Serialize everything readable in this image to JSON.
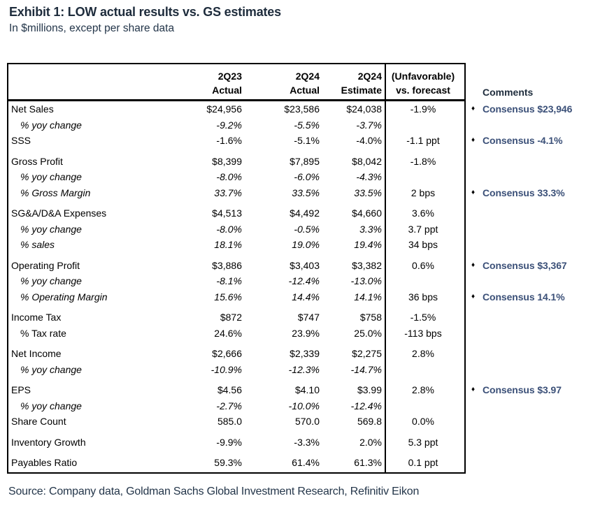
{
  "chart_data": {
    "type": "table",
    "title": "Exhibit 1: LOW actual results vs. GS estimates",
    "subtitle": "In $millions, except per share data",
    "bullet_glyph": "♦",
    "columns": [
      {
        "line1": "",
        "line2": ""
      },
      {
        "line1": "2Q23",
        "line2": "Actual"
      },
      {
        "line1": "2Q24",
        "line2": "Actual"
      },
      {
        "line1": "2Q24",
        "line2": "Estimate"
      },
      {
        "line1": "(Unfavorable)",
        "line2": "vs. forecast"
      },
      {
        "line1": "",
        "line2": "Comments"
      }
    ],
    "rows": [
      {
        "label": "Net Sales",
        "style": "plain",
        "group_start": false,
        "q23": "$24,956",
        "q24": "$23,586",
        "estimate": "$24,038",
        "vs": "-1.9%",
        "comment": "Consensus $23,946"
      },
      {
        "label": "% yoy change",
        "style": "indent-italic",
        "group_start": false,
        "q23": "-9.2%",
        "q24": "-5.5%",
        "estimate": "-3.7%",
        "vs": "",
        "comment": ""
      },
      {
        "label": "SSS",
        "style": "plain",
        "group_start": false,
        "q23": "-1.6%",
        "q24": "-5.1%",
        "estimate": "-4.0%",
        "vs": "-1.1 ppt",
        "comment": "Consensus -4.1%"
      },
      {
        "label": "Gross Profit",
        "style": "plain",
        "group_start": true,
        "q23": "$8,399",
        "q24": "$7,895",
        "estimate": "$8,042",
        "vs": "-1.8%",
        "comment": ""
      },
      {
        "label": "% yoy change",
        "style": "indent-italic",
        "group_start": false,
        "q23": "-8.0%",
        "q24": "-6.0%",
        "estimate": "-4.3%",
        "vs": "",
        "comment": ""
      },
      {
        "label": "% Gross Margin",
        "style": "indent-italic",
        "group_start": false,
        "q23": "33.7%",
        "q24": "33.5%",
        "estimate": "33.5%",
        "vs": "2 bps",
        "comment": "Consensus 33.3%"
      },
      {
        "label": "SG&A/D&A Expenses",
        "style": "plain",
        "group_start": true,
        "q23": "$4,513",
        "q24": "$4,492",
        "estimate": "$4,660",
        "vs": "3.6%",
        "comment": ""
      },
      {
        "label": "% yoy change",
        "style": "indent-italic",
        "group_start": false,
        "q23": "-8.0%",
        "q24": "-0.5%",
        "estimate": "3.3%",
        "vs": "3.7 ppt",
        "comment": ""
      },
      {
        "label": "% sales",
        "style": "indent-italic",
        "group_start": false,
        "q23": "18.1%",
        "q24": "19.0%",
        "estimate": "19.4%",
        "vs": "34 bps",
        "comment": ""
      },
      {
        "label": "Operating Profit",
        "style": "plain",
        "group_start": true,
        "q23": "$3,886",
        "q24": "$3,403",
        "estimate": "$3,382",
        "vs": "0.6%",
        "comment": "Consensus $3,367"
      },
      {
        "label": "% yoy change",
        "style": "indent-italic",
        "group_start": false,
        "q23": "-8.1%",
        "q24": "-12.4%",
        "estimate": "-13.0%",
        "vs": "",
        "comment": ""
      },
      {
        "label": "% Operating Margin",
        "style": "indent-italic",
        "group_start": false,
        "q23": "15.6%",
        "q24": "14.4%",
        "estimate": "14.1%",
        "vs": "36 bps",
        "comment": "Consensus 14.1%"
      },
      {
        "label": "Income Tax",
        "style": "plain",
        "group_start": true,
        "q23": "$872",
        "q24": "$747",
        "estimate": "$758",
        "vs": "-1.5%",
        "comment": ""
      },
      {
        "label": "% Tax rate",
        "style": "indent",
        "group_start": false,
        "q23": "24.6%",
        "q24": "23.9%",
        "estimate": "25.0%",
        "vs": "-113 bps",
        "comment": ""
      },
      {
        "label": "Net Income",
        "style": "plain",
        "group_start": true,
        "q23": "$2,666",
        "q24": "$2,339",
        "estimate": "$2,275",
        "vs": "2.8%",
        "comment": ""
      },
      {
        "label": "% yoy change",
        "style": "indent-italic",
        "group_start": false,
        "q23": "-10.9%",
        "q24": "-12.3%",
        "estimate": "-14.7%",
        "vs": "",
        "comment": ""
      },
      {
        "label": "EPS",
        "style": "plain",
        "group_start": true,
        "q23": "$4.56",
        "q24": "$4.10",
        "estimate": "$3.99",
        "vs": "2.8%",
        "comment": "Consensus $3.97"
      },
      {
        "label": "% yoy change",
        "style": "indent-italic",
        "group_start": false,
        "q23": "-2.7%",
        "q24": "-10.0%",
        "estimate": "-12.4%",
        "vs": "",
        "comment": ""
      },
      {
        "label": "Share Count",
        "style": "plain",
        "group_start": false,
        "q23": "585.0",
        "q24": "570.0",
        "estimate": "569.8",
        "vs": "0.0%",
        "comment": ""
      },
      {
        "label": "Inventory Growth",
        "style": "plain",
        "group_start": true,
        "q23": "-9.9%",
        "q24": "-3.3%",
        "estimate": "2.0%",
        "vs": "5.3 ppt",
        "comment": ""
      },
      {
        "label": "Payables Ratio",
        "style": "plain",
        "group_start": true,
        "q23": "59.3%",
        "q24": "61.4%",
        "estimate": "61.3%",
        "vs": "0.1 ppt",
        "comment": ""
      }
    ]
  },
  "footer": {
    "source": "Source: Company data, Goldman Sachs Global Investment Research, Refinitiv Eikon"
  },
  "colors": {
    "heading": "#1e2c3c",
    "comment_text": "#3b5078",
    "border": "#000000",
    "body_text": "#000000"
  }
}
